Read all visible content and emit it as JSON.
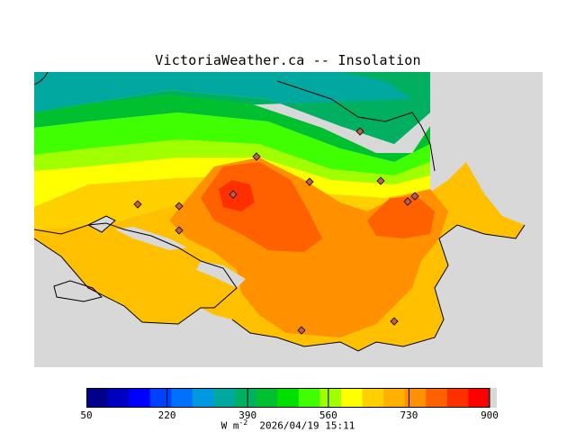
{
  "title": "VictoriaWeather.ca -- Insolation",
  "map": {
    "land_color": "#d8d8d8",
    "stations": [
      {
        "id": "s1"
      },
      {
        "id": "s2"
      },
      {
        "id": "s3"
      },
      {
        "id": "s4"
      },
      {
        "id": "s5"
      },
      {
        "id": "s6"
      },
      {
        "id": "s7"
      },
      {
        "id": "s8"
      },
      {
        "id": "s9"
      },
      {
        "id": "s10"
      },
      {
        "id": "s11"
      },
      {
        "id": "s12"
      }
    ]
  },
  "colorbar": {
    "min": 50,
    "max": 900,
    "step": 42.5,
    "colors": [
      "#00008c",
      "#0000c0",
      "#0000ff",
      "#0040ff",
      "#0070ff",
      "#0098e0",
      "#00a8a0",
      "#00b060",
      "#00c030",
      "#00e000",
      "#40ff00",
      "#a0ff00",
      "#ffff00",
      "#ffd000",
      "#ffb000",
      "#ff9000",
      "#ff6000",
      "#ff3000",
      "#ff0000",
      "#d8d8d8"
    ],
    "tick_labels": [
      "50",
      "220",
      "390",
      "560",
      "730",
      "900"
    ],
    "tick_values": [
      50,
      220,
      390,
      560,
      730,
      900
    ]
  },
  "footer": {
    "unit_prefix": "W m",
    "unit_exp": "-2",
    "timestamp": "2026/04/19 15:11"
  }
}
